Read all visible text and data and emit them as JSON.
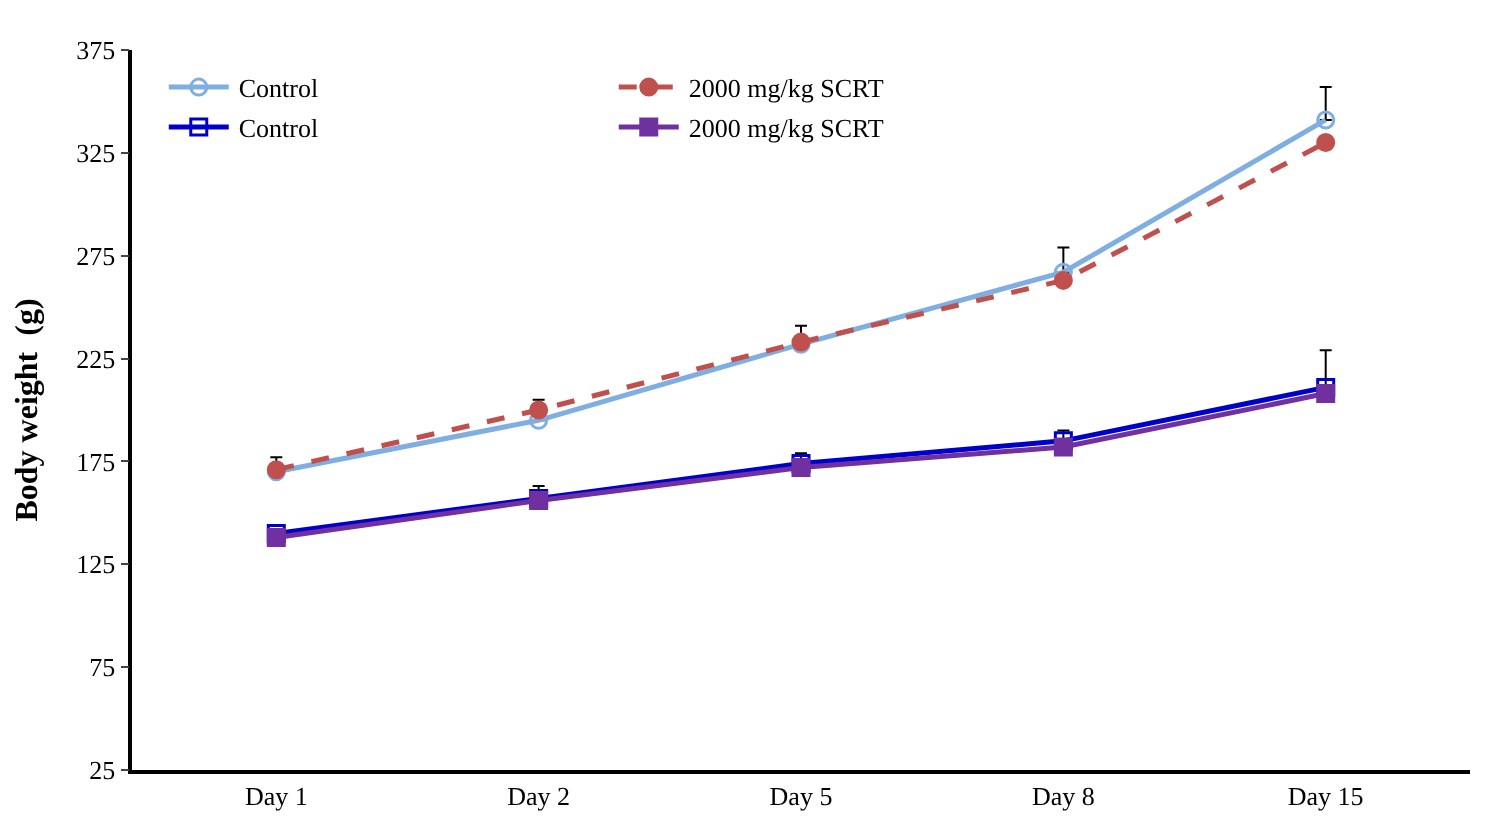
{
  "chart_data": {
    "type": "line",
    "ylabel": "Body weight  (g)",
    "categories": [
      "Day 1",
      "Day 2",
      "Day 5",
      "Day 8",
      "Day 15"
    ],
    "ylim": [
      25,
      375
    ],
    "yticks": [
      25,
      75,
      125,
      175,
      225,
      275,
      325,
      375
    ],
    "legend": "top left",
    "series": [
      {
        "name": "Control",
        "color": "#7eaee2",
        "marker": "circle",
        "line_style": "solid",
        "values": [
          170,
          195,
          232,
          267,
          341
        ],
        "errors": [
          null,
          null,
          null,
          [
            267,
            279
          ],
          [
            341,
            357
          ]
        ]
      },
      {
        "name": "2000 mg/kg SCRT",
        "color": "#c0504d",
        "marker": "circle",
        "line_style": "dashed",
        "values": [
          171,
          200,
          233,
          263,
          330
        ],
        "errors": [
          [
            171,
            177
          ],
          [
            200,
            205
          ],
          [
            233,
            241
          ],
          null,
          null
        ]
      },
      {
        "name": "Control",
        "color": "#0000cc",
        "marker": "square",
        "line_style": "solid",
        "values": [
          140,
          157,
          174,
          185,
          211
        ],
        "errors": [
          null,
          [
            157,
            163
          ],
          [
            174,
            179
          ],
          [
            185,
            190
          ],
          [
            211,
            229
          ]
        ]
      },
      {
        "name": "2000 mg/kg SCRT",
        "color": "#7030a0",
        "marker": "square",
        "line_style": "solid",
        "values": [
          138,
          156,
          172,
          182,
          208
        ]
      }
    ]
  }
}
